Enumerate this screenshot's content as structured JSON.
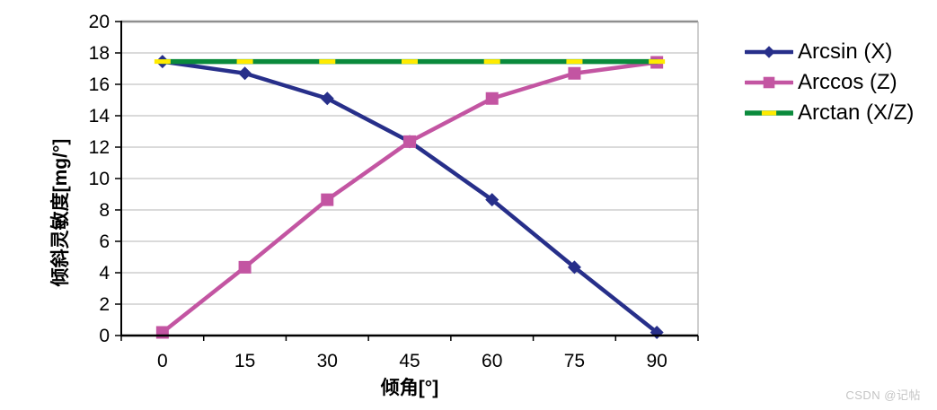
{
  "watermark": "CSDN @记帖",
  "chart_data": {
    "type": "line",
    "title": "",
    "xlabel": "倾角[°]",
    "ylabel": "倾斜灵敏度[mg/°]",
    "categories": [
      0,
      15,
      30,
      45,
      60,
      75,
      90
    ],
    "ylim": [
      0,
      20
    ],
    "ytick_step": 2,
    "grid": "horizontal",
    "legend_position": "right",
    "colors": {
      "gridline": "#c3c3c3",
      "plot_border_top": "#8f8f8f",
      "plot_border_right": "#b3b3b3",
      "axis": "#000000"
    },
    "series": [
      {
        "name": "Arcsin (X)",
        "color": "#272F8A",
        "marker": "diamond",
        "marker_color": "#272F8A",
        "values": [
          17.45,
          16.7,
          15.1,
          12.35,
          8.65,
          4.35,
          0.2
        ]
      },
      {
        "name": "Arccos (Z)",
        "color": "#C355A2",
        "marker": "square",
        "marker_color": "#C355A2",
        "values": [
          0.2,
          4.35,
          8.65,
          12.35,
          15.1,
          16.7,
          17.4
        ]
      },
      {
        "name": "Arctan (X/Z)",
        "color": "#0A8A3C",
        "marker": "dash",
        "marker_color": "#FFEB00",
        "values": [
          17.45,
          17.45,
          17.45,
          17.45,
          17.45,
          17.45,
          17.45
        ]
      }
    ]
  }
}
